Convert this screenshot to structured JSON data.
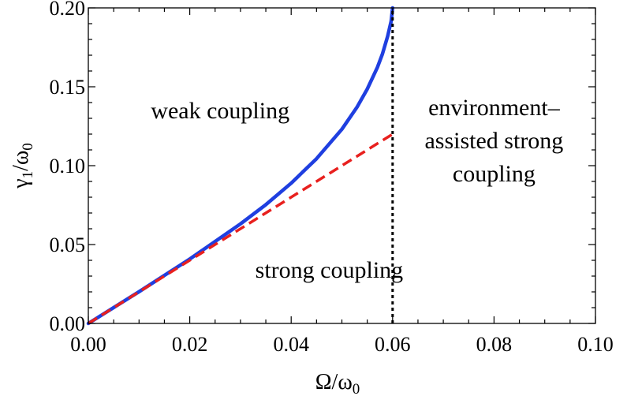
{
  "chart_data": {
    "type": "line",
    "xlabel": "Ω/ω",
    "xlabel_sub": "0",
    "ylabel": "γ",
    "ylabel_sub1": "1",
    "ylabel_mid": "/ω",
    "ylabel_sub2": "0",
    "xlim": [
      0.0,
      0.1
    ],
    "ylim": [
      0.0,
      0.2
    ],
    "x_ticks": [
      "0.00",
      "0.02",
      "0.04",
      "0.06",
      "0.08",
      "0.10"
    ],
    "y_ticks": [
      "0.00",
      "0.05",
      "0.10",
      "0.15",
      "0.20"
    ],
    "x_tick_values": [
      0.0,
      0.02,
      0.04,
      0.06,
      0.08,
      0.1
    ],
    "y_tick_values": [
      0.0,
      0.05,
      0.1,
      0.15,
      0.2
    ],
    "grid": false,
    "series": [
      {
        "style": "solid",
        "color": "#1f3fe0",
        "x": [
          0.0,
          0.01,
          0.02,
          0.03,
          0.035,
          0.04,
          0.045,
          0.05,
          0.053,
          0.055,
          0.057,
          0.058,
          0.059,
          0.0597,
          0.06
        ],
        "y": [
          0.0,
          0.0201,
          0.0408,
          0.0631,
          0.0753,
          0.0889,
          0.1044,
          0.1231,
          0.1372,
          0.1485,
          0.1623,
          0.1708,
          0.1818,
          0.1914,
          0.2
        ]
      },
      {
        "style": "dashed",
        "color": "#e8201e",
        "x": [
          0.0,
          0.06
        ],
        "y": [
          0.0,
          0.12
        ]
      },
      {
        "style": "dotted",
        "color": "#000000",
        "x": [
          0.06,
          0.06
        ],
        "y": [
          0.0,
          0.2
        ]
      }
    ],
    "annotations": [
      {
        "lines": [
          "weak coupling"
        ],
        "x": 0.026,
        "y": 0.13
      },
      {
        "lines": [
          "strong coupling"
        ],
        "x": 0.0475,
        "y": 0.029
      },
      {
        "lines": [
          "environment–",
          "assisted strong",
          "coupling"
        ],
        "x": 0.08,
        "y": 0.132
      }
    ]
  }
}
